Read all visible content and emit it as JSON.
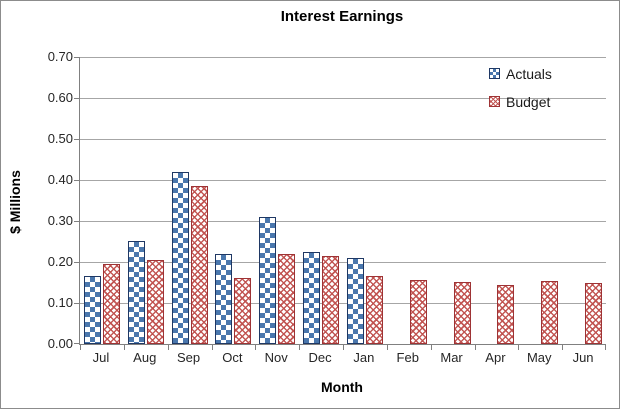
{
  "window": {
    "background_color": "#ffffff",
    "border_color": "#8c8c8c"
  },
  "chart_data": {
    "type": "bar",
    "title": "Interest Earnings",
    "xlabel": "Month",
    "ylabel": "$ Millions",
    "ylim": [
      0,
      0.7
    ],
    "ytick_step": 0.1,
    "yticks": [
      "0.00",
      "0.10",
      "0.20",
      "0.30",
      "0.40",
      "0.50",
      "0.60",
      "0.70"
    ],
    "grid": true,
    "legend_position": "top-right",
    "categories": [
      "Jul",
      "Aug",
      "Sep",
      "Oct",
      "Nov",
      "Dec",
      "Jan",
      "Feb",
      "Mar",
      "Apr",
      "May",
      "Jun"
    ],
    "series": [
      {
        "name": "Actuals",
        "pattern": "checkerboard",
        "fill_color": "#4a77ad",
        "border_color": "#1f3864",
        "values": [
          0.165,
          0.25,
          0.42,
          0.22,
          0.31,
          0.225,
          0.21,
          null,
          null,
          null,
          null,
          null
        ]
      },
      {
        "name": "Budget",
        "pattern": "zigzag-hatch",
        "fill_color": "#c0504d",
        "border_color": "#9e3335",
        "values": [
          0.195,
          0.205,
          0.385,
          0.16,
          0.22,
          0.215,
          0.165,
          0.155,
          0.15,
          0.145,
          0.153,
          0.149
        ]
      }
    ],
    "colors": {
      "gridline": "#a6a6a6",
      "axis_line": "#808080",
      "tick_label": "#262626",
      "title": "#000000"
    }
  }
}
